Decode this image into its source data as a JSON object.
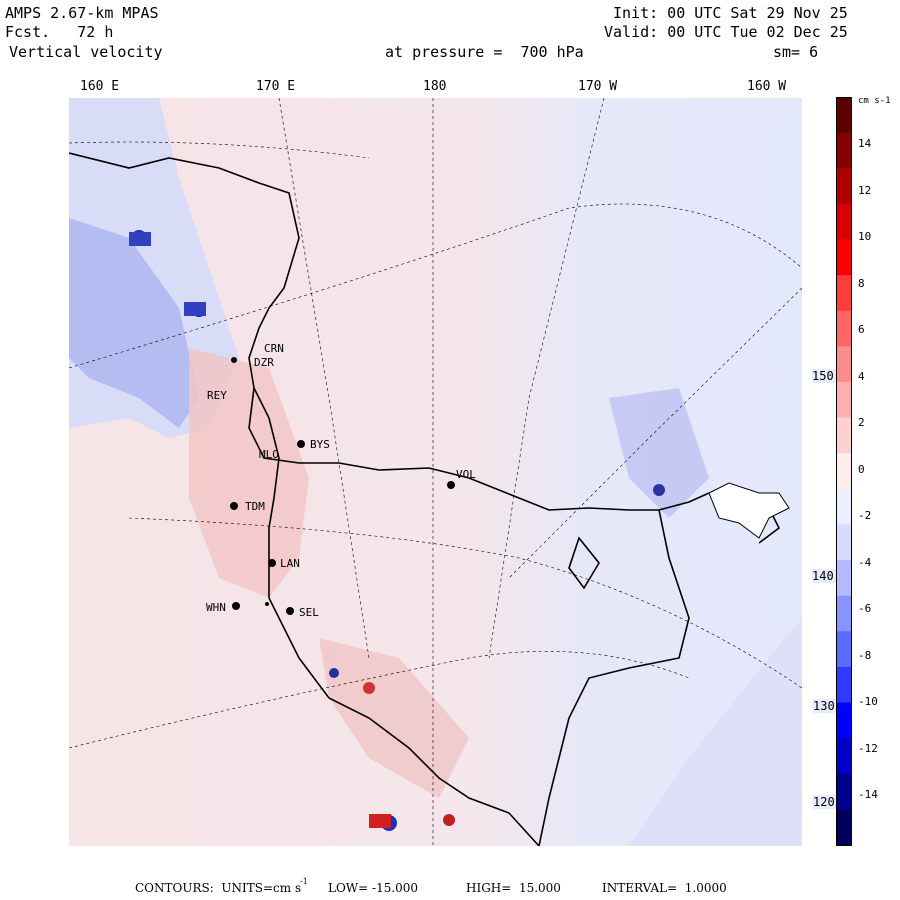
{
  "header": {
    "model": "AMPS 2.67-km MPAS",
    "forecast": "Fcst.   72 h",
    "field": "Vertical velocity",
    "init": "Init: 00 UTC Sat 29 Nov 25",
    "valid": "Valid: 00 UTC Tue 02 Dec 25",
    "pressure": "at pressure =  700 hPa",
    "smoothing": "sm= 6"
  },
  "longitudes": [
    "160 E",
    "170 E",
    "180",
    "170 W",
    "160 W"
  ],
  "latitudes": [
    "150 W",
    "140 W",
    "130 W",
    "120 W"
  ],
  "stations": [
    {
      "code": "CRN"
    },
    {
      "code": "DZR"
    },
    {
      "code": "REY"
    },
    {
      "code": "BYS"
    },
    {
      "code": "MLO"
    },
    {
      "code": "VOL"
    },
    {
      "code": "TDM"
    },
    {
      "code": "LAN"
    },
    {
      "code": "WHN"
    },
    {
      "code": "SEL"
    }
  ],
  "colorbar": {
    "unit": "cm s-1",
    "labels": [
      "14",
      "12",
      "10",
      "8",
      "6",
      "4",
      "2",
      "0",
      "-2",
      "-4",
      "-6",
      "-8",
      "-10",
      "-12",
      "-14"
    ],
    "colors": [
      "#00005a",
      "#000090",
      "#0000c8",
      "#0000ff",
      "#2d3cff",
      "#5a6aff",
      "#8894ff",
      "#b4bcff",
      "#d6dbff",
      "#eceeff",
      "#ffecec",
      "#ffd0d0",
      "#ffb0b0",
      "#ff8c8c",
      "#ff6464",
      "#ff3c3c",
      "#ff0000",
      "#d80000",
      "#b00000",
      "#840000",
      "#5a0000"
    ]
  },
  "footer": {
    "contours": "CONTOURS:  UNITS=cm s",
    "low": "LOW= -15.000",
    "high": "HIGH=  15.000",
    "interval": "INTERVAL=  1.0000"
  }
}
